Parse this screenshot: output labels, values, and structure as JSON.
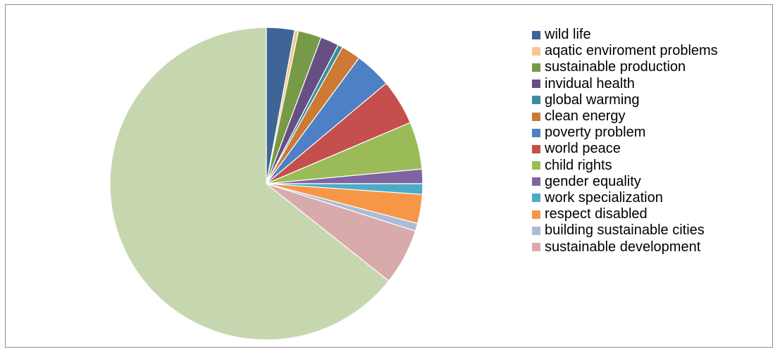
{
  "chart_data": {
    "type": "pie",
    "title": "",
    "start_angle_deg": 0,
    "direction": "clockwise",
    "legend_position": "right",
    "slices": [
      {
        "label": "wild life",
        "value": 2.9,
        "color": "#3e6596"
      },
      {
        "label": "aqatic enviroment problems",
        "value": 0.4,
        "color": "#f2c894"
      },
      {
        "label": "sustainable production",
        "value": 2.4,
        "color": "#779a46"
      },
      {
        "label": "invidual health",
        "value": 1.9,
        "color": "#664f83"
      },
      {
        "label": "global warming",
        "value": 0.5,
        "color": "#3b8d9e"
      },
      {
        "label": "clean energy",
        "value": 2.0,
        "color": "#cc7a34"
      },
      {
        "label": "poverty problem",
        "value": 3.8,
        "color": "#4d80c4"
      },
      {
        "label": "world peace",
        "value": 4.7,
        "color": "#c44f4c"
      },
      {
        "label": "child rights",
        "value": 4.9,
        "color": "#9bbb59"
      },
      {
        "label": "gender equality",
        "value": 1.5,
        "color": "#8064a2"
      },
      {
        "label": "work specialization",
        "value": 1.1,
        "color": "#4bacc6"
      },
      {
        "label": "respect disabled",
        "value": 3.0,
        "color": "#f79646"
      },
      {
        "label": "building sustainable cities",
        "value": 0.8,
        "color": "#a9bcd9"
      },
      {
        "label": "sustainable development",
        "value": 5.8,
        "color": "#d9aaab"
      },
      {
        "label": "",
        "value": 64.3,
        "color": "#c6d7af"
      }
    ]
  }
}
